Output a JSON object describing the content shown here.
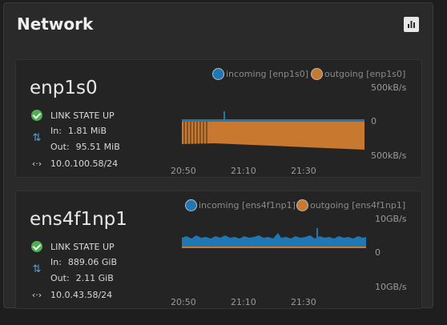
{
  "panel": {
    "title": "Network"
  },
  "colors": {
    "incoming": "#1f77b4",
    "outgoing": "#c8782f"
  },
  "interfaces": [
    {
      "name": "enp1s0",
      "link_state": "LINK STATE UP",
      "in_label": "In:",
      "in_value": "1.81 MiB",
      "out_label": "Out:",
      "out_value": "95.51 MiB",
      "address": "10.0.100.58/24",
      "legend_in": "incoming [enp1s0]",
      "legend_out": "outgoing [enp1s0]",
      "y_top": "500kB/s",
      "y_zero": "0",
      "y_bottom": "500kB/s",
      "x_ticks": [
        "20:50",
        "21:10",
        "21:30"
      ]
    },
    {
      "name": "ens4f1np1",
      "link_state": "LINK STATE UP",
      "in_label": "In:",
      "in_value": "889.06 GiB",
      "out_label": "Out:",
      "out_value": "2.11 GiB",
      "address": "10.0.43.58/24",
      "legend_in": "incoming [ens4f1np1]",
      "legend_out": "outgoing [ens4f1np1]",
      "y_top": "10GB/s",
      "y_zero": "0",
      "y_bottom": "10GB/s",
      "x_ticks": [
        "20:50",
        "21:10",
        "21:30"
      ]
    }
  ]
}
